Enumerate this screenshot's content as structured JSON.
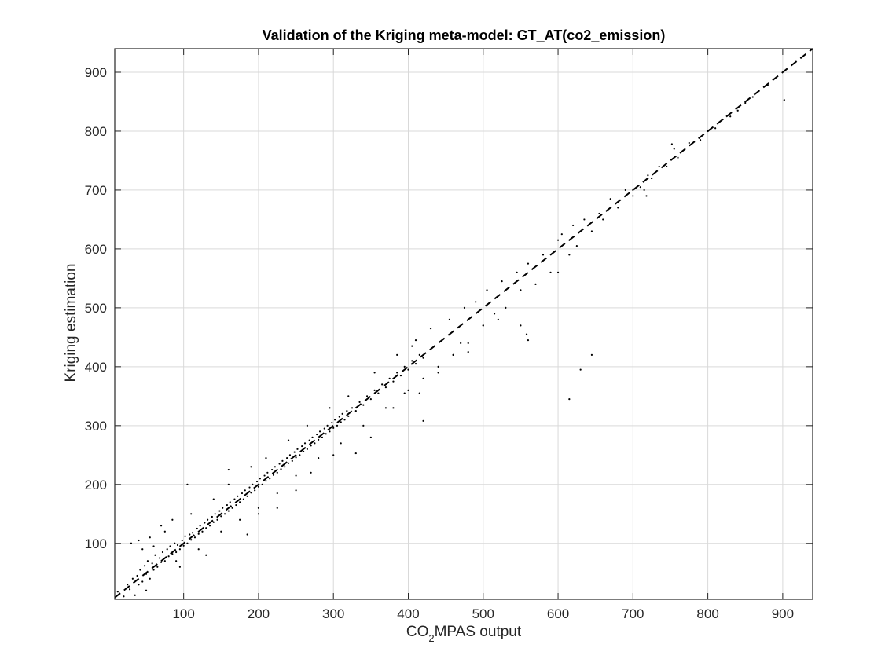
{
  "chart_data": {
    "type": "scatter",
    "title": "Validation of the Kriging meta-model: GT_AT(co2_emission)",
    "xlabel_parts": [
      "CO",
      "2",
      "MPAS output"
    ],
    "ylabel": "Kriging estimation",
    "xlim": [
      8,
      940
    ],
    "ylim": [
      5,
      940
    ],
    "x_ticks": [
      100,
      200,
      300,
      400,
      500,
      600,
      700,
      800,
      900
    ],
    "y_ticks": [
      100,
      200,
      300,
      400,
      500,
      600,
      700,
      800,
      900
    ],
    "grid": true,
    "reference_line": {
      "style": "dashed",
      "from": [
        8,
        8
      ],
      "to": [
        940,
        940
      ]
    },
    "series": [
      {
        "marker": "dot",
        "color": "#000000",
        "points": [
          [
            12,
            18
          ],
          [
            20,
            10
          ],
          [
            25,
            30
          ],
          [
            28,
            22
          ],
          [
            32,
            40
          ],
          [
            35,
            12
          ],
          [
            38,
            45
          ],
          [
            40,
            30
          ],
          [
            42,
            55
          ],
          [
            45,
            35
          ],
          [
            48,
            62
          ],
          [
            50,
            48
          ],
          [
            52,
            70
          ],
          [
            55,
            40
          ],
          [
            58,
            66
          ],
          [
            60,
            55
          ],
          [
            62,
            80
          ],
          [
            65,
            60
          ],
          [
            68,
            75
          ],
          [
            70,
            68
          ],
          [
            72,
            85
          ],
          [
            75,
            70
          ],
          [
            78,
            90
          ],
          [
            80,
            78
          ],
          [
            82,
            95
          ],
          [
            85,
            82
          ],
          [
            88,
            100
          ],
          [
            90,
            85
          ],
          [
            92,
            97
          ],
          [
            95,
            90
          ],
          [
            98,
            105
          ],
          [
            100,
            96
          ],
          [
            102,
            112
          ],
          [
            105,
            100
          ],
          [
            108,
            115
          ],
          [
            110,
            106
          ],
          [
            112,
            118
          ],
          [
            115,
            110
          ],
          [
            118,
            125
          ],
          [
            120,
            116
          ],
          [
            122,
            130
          ],
          [
            125,
            120
          ],
          [
            128,
            135
          ],
          [
            130,
            126
          ],
          [
            132,
            140
          ],
          [
            135,
            130
          ],
          [
            138,
            145
          ],
          [
            140,
            136
          ],
          [
            142,
            150
          ],
          [
            145,
            140
          ],
          [
            148,
            155
          ],
          [
            150,
            146
          ],
          [
            152,
            160
          ],
          [
            155,
            150
          ],
          [
            158,
            165
          ],
          [
            160,
            155
          ],
          [
            162,
            170
          ],
          [
            165,
            160
          ],
          [
            168,
            175
          ],
          [
            170,
            165
          ],
          [
            172,
            180
          ],
          [
            175,
            170
          ],
          [
            178,
            185
          ],
          [
            180,
            175
          ],
          [
            182,
            190
          ],
          [
            185,
            180
          ],
          [
            188,
            195
          ],
          [
            190,
            186
          ],
          [
            192,
            200
          ],
          [
            195,
            190
          ],
          [
            198,
            205
          ],
          [
            200,
            196
          ],
          [
            202,
            210
          ],
          [
            205,
            200
          ],
          [
            208,
            215
          ],
          [
            210,
            206
          ],
          [
            212,
            220
          ],
          [
            215,
            210
          ],
          [
            218,
            225
          ],
          [
            220,
            216
          ],
          [
            222,
            230
          ],
          [
            225,
            220
          ],
          [
            228,
            235
          ],
          [
            230,
            226
          ],
          [
            232,
            240
          ],
          [
            235,
            230
          ],
          [
            238,
            245
          ],
          [
            240,
            236
          ],
          [
            242,
            250
          ],
          [
            245,
            240
          ],
          [
            248,
            255
          ],
          [
            250,
            246
          ],
          [
            252,
            260
          ],
          [
            255,
            250
          ],
          [
            258,
            265
          ],
          [
            260,
            256
          ],
          [
            262,
            270
          ],
          [
            265,
            260
          ],
          [
            268,
            275
          ],
          [
            270,
            266
          ],
          [
            272,
            280
          ],
          [
            275,
            270
          ],
          [
            278,
            285
          ],
          [
            280,
            276
          ],
          [
            282,
            290
          ],
          [
            285,
            280
          ],
          [
            288,
            295
          ],
          [
            290,
            286
          ],
          [
            292,
            300
          ],
          [
            295,
            290
          ],
          [
            298,
            305
          ],
          [
            300,
            296
          ],
          [
            302,
            310
          ],
          [
            305,
            300
          ],
          [
            308,
            315
          ],
          [
            310,
            306
          ],
          [
            312,
            320
          ],
          [
            315,
            310
          ],
          [
            318,
            325
          ],
          [
            320,
            316
          ],
          [
            325,
            330
          ],
          [
            330,
            325
          ],
          [
            335,
            340
          ],
          [
            340,
            335
          ],
          [
            345,
            350
          ],
          [
            350,
            345
          ],
          [
            355,
            360
          ],
          [
            360,
            355
          ],
          [
            365,
            370
          ],
          [
            370,
            365
          ],
          [
            375,
            380
          ],
          [
            380,
            375
          ],
          [
            385,
            390
          ],
          [
            390,
            385
          ],
          [
            395,
            400
          ],
          [
            400,
            395
          ],
          [
            405,
            410
          ],
          [
            410,
            405
          ],
          [
            415,
            420
          ],
          [
            420,
            415
          ],
          [
            60,
            95
          ],
          [
            75,
            120
          ],
          [
            90,
            70
          ],
          [
            110,
            150
          ],
          [
            120,
            90
          ],
          [
            140,
            175
          ],
          [
            150,
            120
          ],
          [
            160,
            200
          ],
          [
            175,
            140
          ],
          [
            190,
            230
          ],
          [
            200,
            160
          ],
          [
            210,
            245
          ],
          [
            225,
            185
          ],
          [
            240,
            275
          ],
          [
            250,
            215
          ],
          [
            265,
            300
          ],
          [
            280,
            245
          ],
          [
            295,
            330
          ],
          [
            310,
            270
          ],
          [
            320,
            350
          ],
          [
            340,
            300
          ],
          [
            355,
            390
          ],
          [
            370,
            330
          ],
          [
            385,
            420
          ],
          [
            395,
            355
          ],
          [
            410,
            445
          ],
          [
            420,
            380
          ],
          [
            430,
            465
          ],
          [
            440,
            400
          ],
          [
            455,
            480
          ],
          [
            460,
            420
          ],
          [
            475,
            500
          ],
          [
            480,
            440
          ],
          [
            490,
            510
          ],
          [
            500,
            470
          ],
          [
            505,
            530
          ],
          [
            515,
            490
          ],
          [
            525,
            545
          ],
          [
            530,
            500
          ],
          [
            545,
            560
          ],
          [
            550,
            530
          ],
          [
            560,
            575
          ],
          [
            570,
            540
          ],
          [
            580,
            590
          ],
          [
            590,
            560
          ],
          [
            600,
            615
          ],
          [
            605,
            625
          ],
          [
            615,
            590
          ],
          [
            620,
            640
          ],
          [
            625,
            605
          ],
          [
            635,
            650
          ],
          [
            645,
            630
          ],
          [
            655,
            660
          ],
          [
            660,
            650
          ],
          [
            670,
            685
          ],
          [
            680,
            670
          ],
          [
            690,
            700
          ],
          [
            700,
            690
          ],
          [
            710,
            705
          ],
          [
            715,
            700
          ],
          [
            720,
            725
          ],
          [
            725,
            720
          ],
          [
            735,
            740
          ],
          [
            745,
            740
          ],
          [
            752,
            778
          ],
          [
            755,
            770
          ],
          [
            760,
            755
          ],
          [
            775,
            780
          ],
          [
            790,
            785
          ],
          [
            800,
            800
          ],
          [
            810,
            805
          ],
          [
            820,
            820
          ],
          [
            830,
            825
          ],
          [
            840,
            835
          ],
          [
            850,
            848
          ],
          [
            860,
            858
          ],
          [
            880,
            878
          ],
          [
            902,
            853
          ],
          [
            30,
            100
          ],
          [
            40,
            105
          ],
          [
            45,
            90
          ],
          [
            50,
            20
          ],
          [
            55,
            110
          ],
          [
            70,
            130
          ],
          [
            85,
            140
          ],
          [
            95,
            60
          ],
          [
            105,
            200
          ],
          [
            130,
            80
          ],
          [
            160,
            225
          ],
          [
            185,
            115
          ],
          [
            200,
            150
          ],
          [
            225,
            160
          ],
          [
            250,
            190
          ],
          [
            270,
            220
          ],
          [
            300,
            250
          ],
          [
            330,
            253
          ],
          [
            350,
            280
          ],
          [
            380,
            330
          ],
          [
            400,
            360
          ],
          [
            405,
            435
          ],
          [
            415,
            355
          ],
          [
            420,
            308
          ],
          [
            440,
            390
          ],
          [
            460,
            420
          ],
          [
            470,
            440
          ],
          [
            480,
            425
          ],
          [
            500,
            470
          ],
          [
            520,
            480
          ],
          [
            550,
            470
          ],
          [
            558,
            455
          ],
          [
            560,
            445
          ],
          [
            600,
            560
          ],
          [
            615,
            345
          ],
          [
            630,
            395
          ],
          [
            645,
            420
          ],
          [
            700,
            700
          ],
          [
            718,
            690
          ],
          [
            725,
            720
          ]
        ]
      }
    ]
  }
}
